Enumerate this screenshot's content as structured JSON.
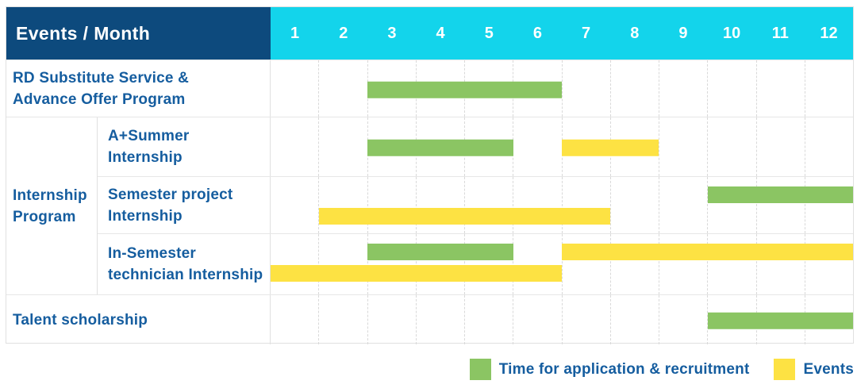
{
  "header": {
    "corner_label": "Events / Month",
    "months": [
      "1",
      "2",
      "3",
      "4",
      "5",
      "6",
      "7",
      "8",
      "9",
      "10",
      "11",
      "12"
    ]
  },
  "colors": {
    "header_bg": "#0d4a7d",
    "months_bg": "#13d4eb",
    "label_text": "#155d9f",
    "application": "#8bc563",
    "events": "#fde243"
  },
  "legend": {
    "items": [
      {
        "key": "application",
        "label": "Time for application & recruitment"
      },
      {
        "key": "events",
        "label": "Events"
      }
    ]
  },
  "chart_data": {
    "type": "gantt",
    "x_axis": {
      "unit": "month",
      "ticks": [
        1,
        2,
        3,
        4,
        5,
        6,
        7,
        8,
        9,
        10,
        11,
        12
      ]
    },
    "series_legend": [
      {
        "key": "application",
        "label": "Time for application & recruitment",
        "color": "#8bc563"
      },
      {
        "key": "events",
        "label": "Events",
        "color": "#fde243"
      }
    ],
    "groups": [
      {
        "label": "Internship Program",
        "label_lines": [
          "Internship",
          "Program"
        ],
        "row_indexes": [
          1,
          2,
          3
        ]
      }
    ],
    "rows": [
      {
        "label": "RD Substitute Service & Advance Offer Program",
        "label_lines": [
          "RD Substitute Service &",
          "Advance Offer Program"
        ],
        "group": null,
        "lanes": 1,
        "bars": [
          {
            "series": "application",
            "start_month": 3,
            "end_month": 6,
            "lane": 0
          }
        ]
      },
      {
        "label": "A+Summer Internship",
        "label_lines": [
          "A+Summer",
          "Internship"
        ],
        "group": "Internship Program",
        "lanes": 1,
        "bars": [
          {
            "series": "application",
            "start_month": 3,
            "end_month": 5,
            "lane": 0
          },
          {
            "series": "events",
            "start_month": 7,
            "end_month": 8,
            "lane": 0
          }
        ]
      },
      {
        "label": "Semester project Internship",
        "label_lines": [
          "Semester project",
          "Internship"
        ],
        "group": "Internship Program",
        "lanes": 2,
        "bars": [
          {
            "series": "application",
            "start_month": 10,
            "end_month": 12,
            "lane": 0
          },
          {
            "series": "events",
            "start_month": 2,
            "end_month": 7,
            "lane": 1
          }
        ]
      },
      {
        "label": "In-Semester technician Internship",
        "label_lines": [
          "In-Semester",
          "technician Internship"
        ],
        "group": "Internship Program",
        "lanes": 2,
        "bars": [
          {
            "series": "application",
            "start_month": 3,
            "end_month": 5,
            "lane": 0
          },
          {
            "series": "events",
            "start_month": 7,
            "end_month": 12,
            "lane": 0
          },
          {
            "series": "events",
            "start_month": 1,
            "end_month": 6,
            "lane": 1
          }
        ]
      },
      {
        "label": "Talent scholarship",
        "label_lines": [
          "Talent scholarship"
        ],
        "group": null,
        "lanes": 1,
        "bars": [
          {
            "series": "application",
            "start_month": 10,
            "end_month": 12,
            "lane": 0
          }
        ]
      }
    ]
  }
}
